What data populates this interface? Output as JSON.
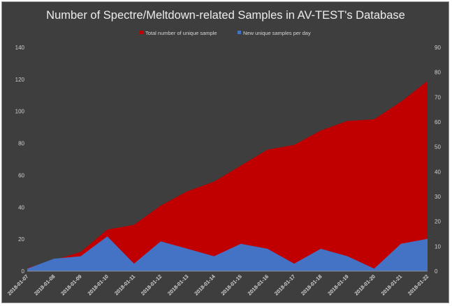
{
  "chart_data": {
    "type": "area",
    "title": "Number of Spectre/Meltdown-related Samples in AV-TEST's Database",
    "legend_position": "top",
    "grid": false,
    "categories": [
      "2018-01-07",
      "2018-01-08",
      "2018-01-09",
      "2018-01-10",
      "2018-01-11",
      "2018-01-12",
      "2018-01-13",
      "2018-01-14",
      "2018-01-15",
      "2018-01-16",
      "2018-01-17",
      "2018-01-18",
      "2018-01-19",
      "2018-01-20",
      "2018-01-21",
      "2018-01-22"
    ],
    "y_left": {
      "min": 0,
      "max": 140,
      "step": 20
    },
    "y_right": {
      "min": 0,
      "max": 90,
      "step": 10
    },
    "series": [
      {
        "name": "Total number of unique sample",
        "axis": "left",
        "color": "#c00000",
        "values": [
          2,
          7,
          12,
          26,
          29,
          41,
          50,
          56,
          66,
          76,
          79,
          88,
          94,
          95,
          106,
          119
        ]
      },
      {
        "name": "New unique samples per day",
        "axis": "right",
        "color": "#4472c4",
        "values": [
          1,
          5,
          6,
          14,
          3,
          12,
          9,
          6,
          11,
          9,
          3,
          9,
          6,
          1,
          11,
          13
        ]
      }
    ]
  }
}
